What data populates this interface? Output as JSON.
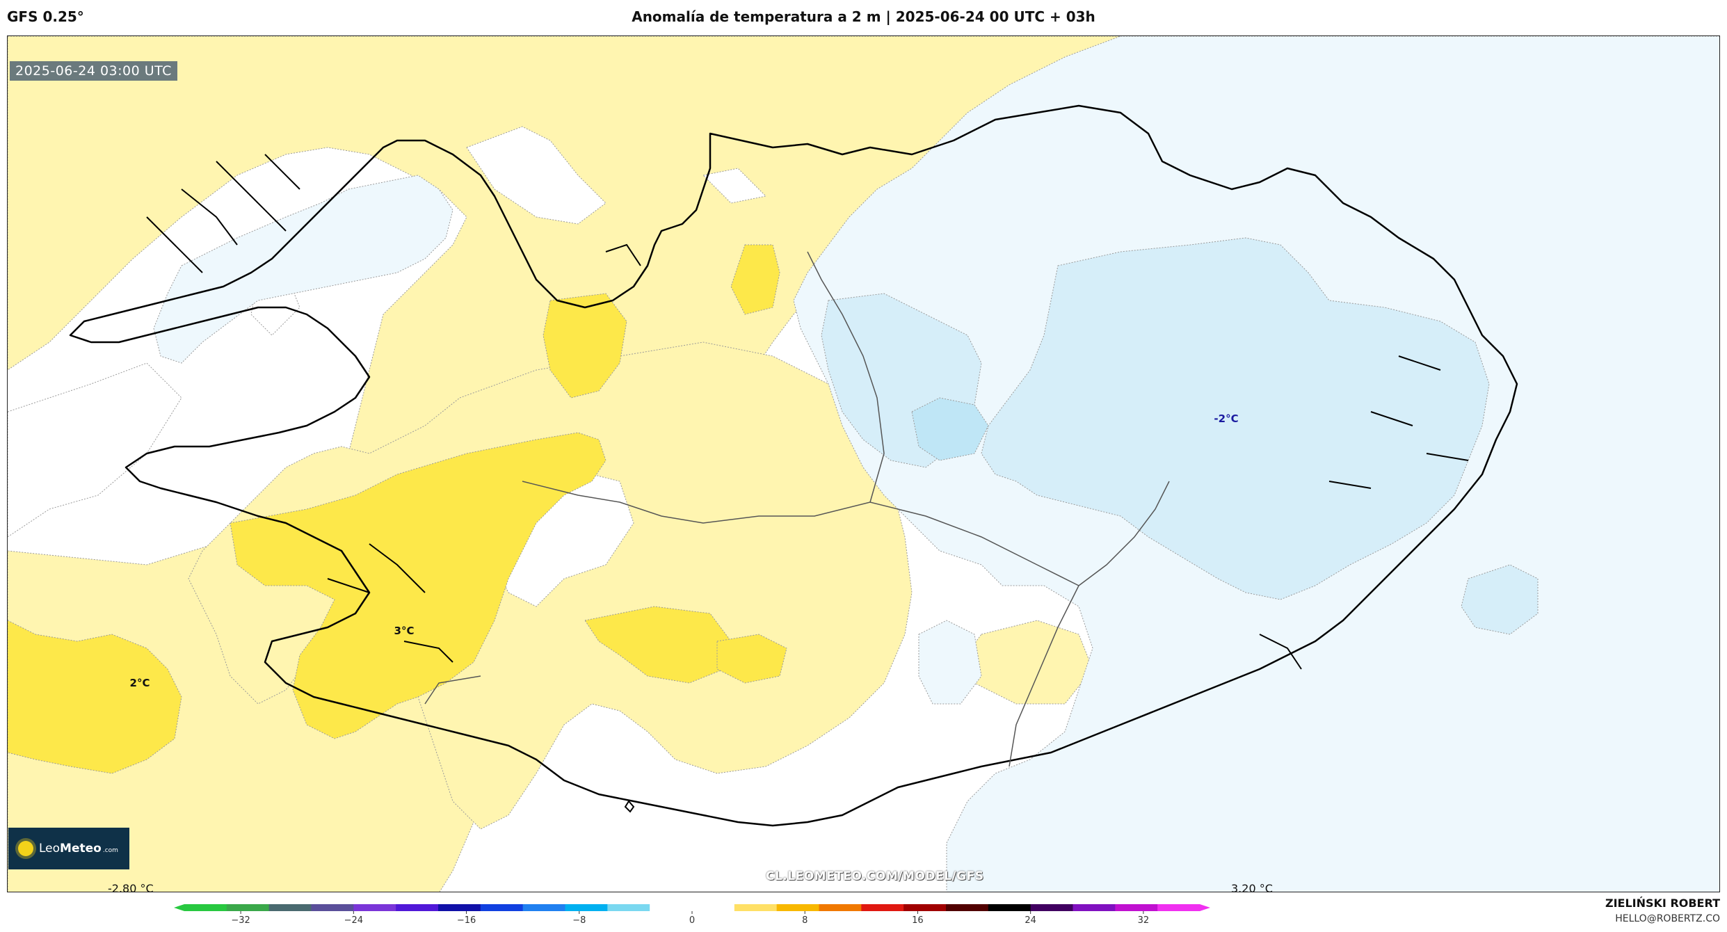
{
  "header": {
    "model": "GFS 0.25°",
    "title": "Anomalía de temperatura a 2 m | 2025-06-24 00 UTC + 03h"
  },
  "map": {
    "valid_time": "2025-06-24 03:00 UTC",
    "labels": [
      {
        "text": "2°C",
        "value": 2
      },
      {
        "text": "3°C",
        "value": 3
      },
      {
        "text": "-2°C",
        "value": -2
      }
    ],
    "watermark": "CL.LEOMETEO.COM/MODEL/GFS",
    "logo": {
      "name_light": "Leo",
      "name_bold": "Meteo",
      "domain": ".com"
    },
    "colors": {
      "warm_light": "#fff5b0",
      "warm_mid": "#fde84a",
      "cold_light": "#eef8fd",
      "cold_mid": "#d6eef9",
      "cold_deep": "#bfe6f6",
      "coast": "#000000",
      "border": "#555555"
    }
  },
  "colorbar": {
    "min_label": "-2.80 °C",
    "max_label": "3.20 °C",
    "range": [
      -36,
      36
    ],
    "ticks": [
      "−32",
      "−24",
      "−16",
      "−8",
      "0",
      "8",
      "16",
      "24",
      "32"
    ],
    "stops": [
      "#28c840",
      "#3aa84a",
      "#4a6a70",
      "#5a4f9a",
      "#7a35d8",
      "#5018d8",
      "#1010a8",
      "#1040e0",
      "#2080f0",
      "#00b0f0",
      "#7ad8f0",
      "#ffffff",
      "#ffffff",
      "#ffe066",
      "#f8b800",
      "#f07800",
      "#e01810",
      "#a00000",
      "#500000",
      "#000000",
      "#400060",
      "#8010c0",
      "#c010d0",
      "#f030f0"
    ]
  },
  "credits": {
    "author": "ZIELIŃSKI ROBERT",
    "email": "HELLO@ROBERTZ.CO"
  }
}
